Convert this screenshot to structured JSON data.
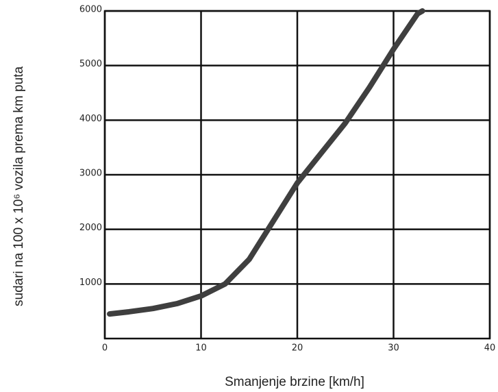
{
  "chart_data": {
    "type": "line",
    "x_label": "Smanjenje brzine [km/h]",
    "y_label": "sudari na 100 x 10⁶ vozila prema km puta",
    "x": [
      0.5,
      2.5,
      5,
      7.5,
      10,
      12.5,
      15,
      17.5,
      20,
      22.5,
      25,
      27.5,
      30,
      32.5,
      33
    ],
    "series": [
      {
        "name": "sudari",
        "color": "#3f3f3f",
        "values": [
          450,
          490,
          550,
          640,
          780,
          1000,
          1450,
          2150,
          2850,
          3400,
          3950,
          4600,
          5300,
          5950,
          6000
        ]
      }
    ],
    "xlim": [
      0,
      40
    ],
    "xticks": [
      0,
      10,
      20,
      30,
      40
    ],
    "ylim": [
      0,
      6000
    ],
    "yticks": [
      1000,
      2000,
      3000,
      4000,
      5000,
      6000
    ],
    "grid": true
  }
}
